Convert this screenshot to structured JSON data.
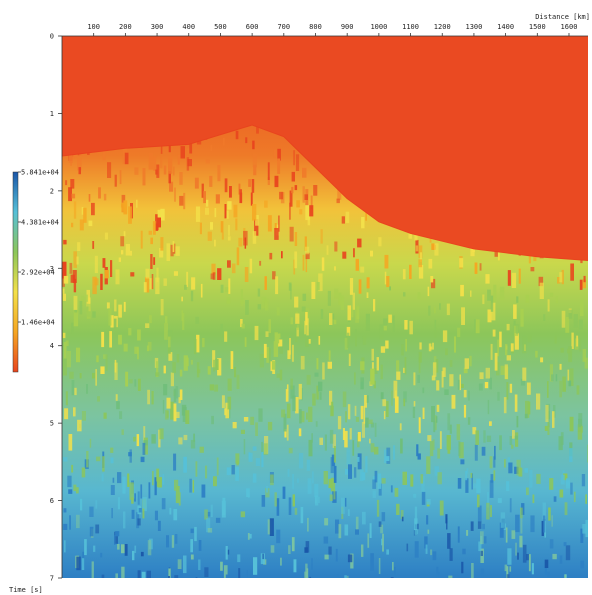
{
  "chart_data": {
    "type": "heatmap",
    "title": "",
    "xlabel": "Distance [km]",
    "ylabel": "Time [s]",
    "x_axis_position": "top",
    "xlim": [
      0,
      1660
    ],
    "ylim": [
      0,
      7
    ],
    "x_ticks": [
      100,
      200,
      300,
      400,
      500,
      600,
      700,
      800,
      900,
      1000,
      1100,
      1200,
      1300,
      1400,
      1500,
      1600
    ],
    "y_ticks": [
      0,
      1,
      2,
      3,
      4,
      5,
      6,
      7
    ],
    "colorbar": {
      "min": 0,
      "max": 58410,
      "tick_values": [
        58410,
        43810,
        29200,
        14600
      ],
      "tick_labels": [
        "5.841e+04",
        "4.381e+04",
        "2.92e+04",
        "1.46e+04"
      ],
      "colors": [
        "#e8441e",
        "#f5a623",
        "#f3e04a",
        "#8cc65a",
        "#56c0d8",
        "#1a56a8"
      ]
    },
    "boundary": {
      "distance": [
        0,
        200,
        400,
        600,
        700,
        800,
        900,
        1000,
        1100,
        1200,
        1300,
        1400,
        1500,
        1660
      ],
      "time": [
        1.55,
        1.45,
        1.4,
        1.15,
        1.3,
        1.7,
        2.1,
        2.4,
        2.55,
        2.65,
        2.75,
        2.8,
        2.85,
        2.9
      ]
    }
  }
}
